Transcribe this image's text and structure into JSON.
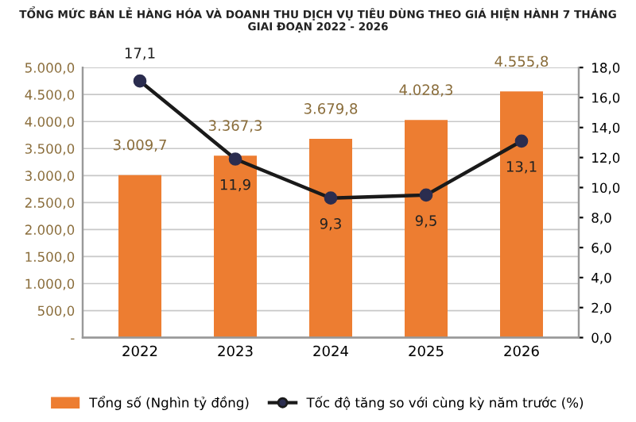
{
  "chart_data": {
    "type": "bar",
    "title": "TỔNG MỨC BÁN LẺ HÀNG HÓA VÀ DOANH THU DỊCH VỤ TIÊU DÙNG THEO GIÁ HIỆN HÀNH 7 THÁNG\nGIAI ĐOẠN 2022 - 2026",
    "categories": [
      "2022",
      "2023",
      "2024",
      "2025",
      "2026"
    ],
    "series": [
      {
        "name": "Tổng số (Nghìn tỷ đồng)",
        "color": "#ed7d31",
        "values": [
          3009.7,
          3367.3,
          3679.8,
          4028.3,
          4555.8
        ],
        "value_labels": [
          "3.009,7",
          "3.367,3",
          "3.679,8",
          "4.028,3",
          "4.555,8"
        ]
      },
      {
        "name": "Tốc độ tăng so với cùng kỳ năm trước (%)",
        "type": "line",
        "axis": "y2",
        "color": "#1a1a1a",
        "values": [
          17.1,
          11.9,
          9.3,
          9.5,
          13.1
        ],
        "value_labels": [
          "17,1",
          "11,9",
          "9,3",
          "9,5",
          "13,1"
        ]
      }
    ],
    "ylim": [
      0,
      5000
    ],
    "yticks": [
      {
        "value": 0,
        "label": "-"
      },
      {
        "value": 500,
        "label": "500,0"
      },
      {
        "value": 1000,
        "label": "1.000,0"
      },
      {
        "value": 1500,
        "label": "1.500,0"
      },
      {
        "value": 2000,
        "label": "2.000,0"
      },
      {
        "value": 2500,
        "label": "2.500,0"
      },
      {
        "value": 3000,
        "label": "3.000,0"
      },
      {
        "value": 3500,
        "label": "3.500,0"
      },
      {
        "value": 4000,
        "label": "4.000,0"
      },
      {
        "value": 4500,
        "label": "4.500,0"
      },
      {
        "value": 5000,
        "label": "5.000,0"
      }
    ],
    "y2lim": [
      0,
      18
    ],
    "y2ticks": [
      {
        "value": 0,
        "label": "0,0"
      },
      {
        "value": 2,
        "label": "2,0"
      },
      {
        "value": 4,
        "label": "4,0"
      },
      {
        "value": 6,
        "label": "6,0"
      },
      {
        "value": 8,
        "label": "8,0"
      },
      {
        "value": 10,
        "label": "10,0"
      },
      {
        "value": 12,
        "label": "12,0"
      },
      {
        "value": 14,
        "label": "14,0"
      },
      {
        "value": 16,
        "label": "16,0"
      },
      {
        "value": 18,
        "label": "18,0"
      }
    ],
    "grid": "y",
    "legend": "bottom",
    "marker": "circle",
    "line_style": "solid"
  }
}
